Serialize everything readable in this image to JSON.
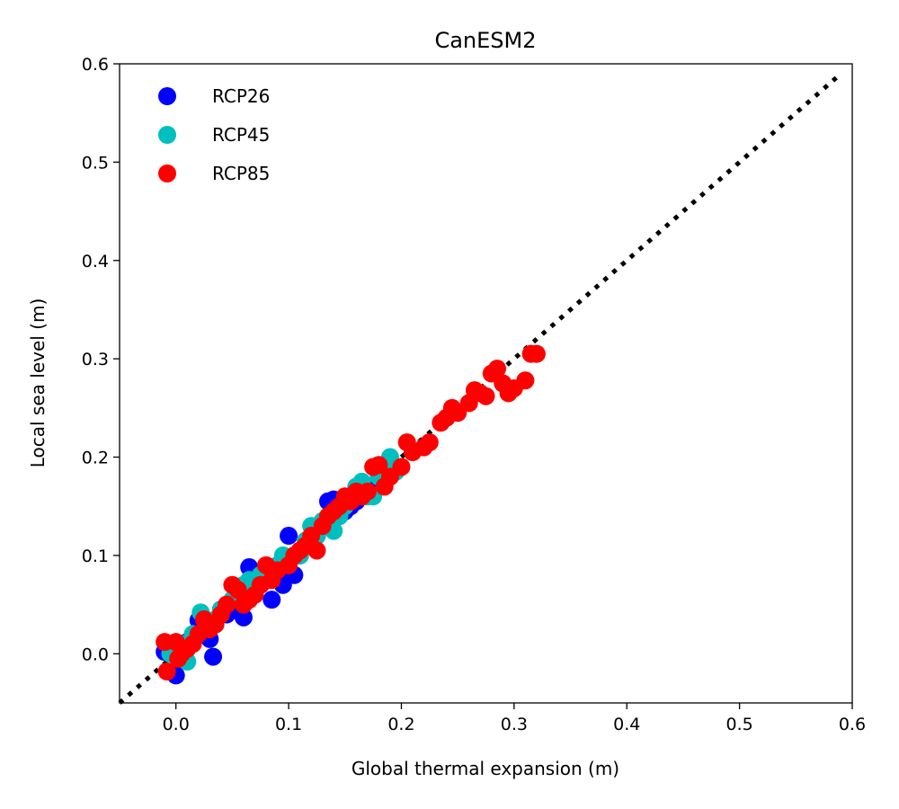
{
  "chart_data": {
    "type": "scatter",
    "title": "CanESM2",
    "xlabel": "Global thermal expansion (m)",
    "ylabel": "Local sea level (m)",
    "xlim": [
      -0.05,
      0.6
    ],
    "ylim": [
      -0.05,
      0.6
    ],
    "xticks": [
      "0.0",
      "0.1",
      "0.2",
      "0.3",
      "0.4",
      "0.5",
      "0.6"
    ],
    "yticks": [
      "0.0",
      "0.1",
      "0.2",
      "0.3",
      "0.4",
      "0.5",
      "0.6"
    ],
    "grid": false,
    "legend_position": "top-left",
    "reference_line": {
      "style": "dotted",
      "color": "#000000",
      "x": [
        -0.05,
        0.6
      ],
      "y": [
        -0.05,
        0.6
      ]
    },
    "series": [
      {
        "name": "RCP26",
        "color": "#0000ff",
        "points": [
          [
            -0.01,
            0.002
          ],
          [
            0.0,
            -0.022
          ],
          [
            0.005,
            0.005
          ],
          [
            0.01,
            0.012
          ],
          [
            0.015,
            0.018
          ],
          [
            0.02,
            0.034
          ],
          [
            0.025,
            0.025
          ],
          [
            0.03,
            0.015
          ],
          [
            0.033,
            -0.003
          ],
          [
            0.035,
            0.03
          ],
          [
            0.04,
            0.045
          ],
          [
            0.045,
            0.04
          ],
          [
            0.05,
            0.05
          ],
          [
            0.055,
            0.06
          ],
          [
            0.06,
            0.037
          ],
          [
            0.065,
            0.088
          ],
          [
            0.07,
            0.065
          ],
          [
            0.075,
            0.07
          ],
          [
            0.08,
            0.075
          ],
          [
            0.085,
            0.055
          ],
          [
            0.09,
            0.08
          ],
          [
            0.095,
            0.07
          ],
          [
            0.1,
            0.12
          ],
          [
            0.105,
            0.08
          ],
          [
            0.11,
            0.1
          ],
          [
            0.12,
            0.11
          ],
          [
            0.125,
            0.12
          ],
          [
            0.13,
            0.13
          ],
          [
            0.135,
            0.155
          ],
          [
            0.14,
            0.157
          ],
          [
            0.145,
            0.14
          ],
          [
            0.15,
            0.145
          ],
          [
            0.155,
            0.15
          ],
          [
            0.16,
            0.155
          ],
          [
            0.165,
            0.16
          ],
          [
            0.17,
            0.165
          ],
          [
            0.175,
            0.17
          ]
        ]
      },
      {
        "name": "RCP45",
        "color": "#00bfbf",
        "points": [
          [
            -0.005,
            0.0
          ],
          [
            0.005,
            0.01
          ],
          [
            0.01,
            -0.008
          ],
          [
            0.015,
            0.02
          ],
          [
            0.022,
            0.042
          ],
          [
            0.03,
            0.03
          ],
          [
            0.035,
            0.035
          ],
          [
            0.04,
            0.045
          ],
          [
            0.05,
            0.055
          ],
          [
            0.055,
            0.06
          ],
          [
            0.06,
            0.07
          ],
          [
            0.065,
            0.075
          ],
          [
            0.07,
            0.06
          ],
          [
            0.075,
            0.08
          ],
          [
            0.08,
            0.085
          ],
          [
            0.09,
            0.09
          ],
          [
            0.095,
            0.1
          ],
          [
            0.1,
            0.095
          ],
          [
            0.11,
            0.1
          ],
          [
            0.115,
            0.115
          ],
          [
            0.12,
            0.13
          ],
          [
            0.125,
            0.12
          ],
          [
            0.13,
            0.135
          ],
          [
            0.14,
            0.125
          ],
          [
            0.145,
            0.14
          ],
          [
            0.15,
            0.15
          ],
          [
            0.155,
            0.158
          ],
          [
            0.16,
            0.17
          ],
          [
            0.165,
            0.175
          ],
          [
            0.17,
            0.16
          ],
          [
            0.175,
            0.16
          ],
          [
            0.18,
            0.18
          ],
          [
            0.185,
            0.19
          ],
          [
            0.19,
            0.2
          ],
          [
            0.195,
            0.185
          ]
        ]
      },
      {
        "name": "RCP85",
        "color": "#ff0000",
        "points": [
          [
            -0.01,
            0.012
          ],
          [
            -0.008,
            -0.018
          ],
          [
            0.0,
            0.012
          ],
          [
            0.002,
            -0.005
          ],
          [
            0.005,
            0.0
          ],
          [
            0.01,
            0.005
          ],
          [
            0.015,
            0.01
          ],
          [
            0.02,
            0.02
          ],
          [
            0.025,
            0.035
          ],
          [
            0.03,
            0.025
          ],
          [
            0.035,
            0.03
          ],
          [
            0.04,
            0.04
          ],
          [
            0.045,
            0.05
          ],
          [
            0.05,
            0.07
          ],
          [
            0.055,
            0.065
          ],
          [
            0.06,
            0.05
          ],
          [
            0.065,
            0.055
          ],
          [
            0.07,
            0.06
          ],
          [
            0.075,
            0.07
          ],
          [
            0.08,
            0.09
          ],
          [
            0.085,
            0.075
          ],
          [
            0.09,
            0.085
          ],
          [
            0.1,
            0.09
          ],
          [
            0.105,
            0.1
          ],
          [
            0.11,
            0.105
          ],
          [
            0.115,
            0.11
          ],
          [
            0.12,
            0.12
          ],
          [
            0.125,
            0.105
          ],
          [
            0.13,
            0.13
          ],
          [
            0.135,
            0.14
          ],
          [
            0.14,
            0.145
          ],
          [
            0.145,
            0.15
          ],
          [
            0.15,
            0.16
          ],
          [
            0.155,
            0.155
          ],
          [
            0.16,
            0.165
          ],
          [
            0.165,
            0.16
          ],
          [
            0.17,
            0.165
          ],
          [
            0.175,
            0.19
          ],
          [
            0.18,
            0.192
          ],
          [
            0.185,
            0.17
          ],
          [
            0.19,
            0.18
          ],
          [
            0.2,
            0.19
          ],
          [
            0.205,
            0.215
          ],
          [
            0.21,
            0.205
          ],
          [
            0.22,
            0.21
          ],
          [
            0.225,
            0.215
          ],
          [
            0.235,
            0.235
          ],
          [
            0.24,
            0.24
          ],
          [
            0.245,
            0.25
          ],
          [
            0.25,
            0.245
          ],
          [
            0.26,
            0.255
          ],
          [
            0.265,
            0.268
          ],
          [
            0.27,
            0.265
          ],
          [
            0.275,
            0.262
          ],
          [
            0.28,
            0.285
          ],
          [
            0.285,
            0.29
          ],
          [
            0.29,
            0.275
          ],
          [
            0.295,
            0.265
          ],
          [
            0.3,
            0.27
          ],
          [
            0.31,
            0.278
          ],
          [
            0.315,
            0.305
          ],
          [
            0.32,
            0.305
          ]
        ]
      }
    ]
  }
}
